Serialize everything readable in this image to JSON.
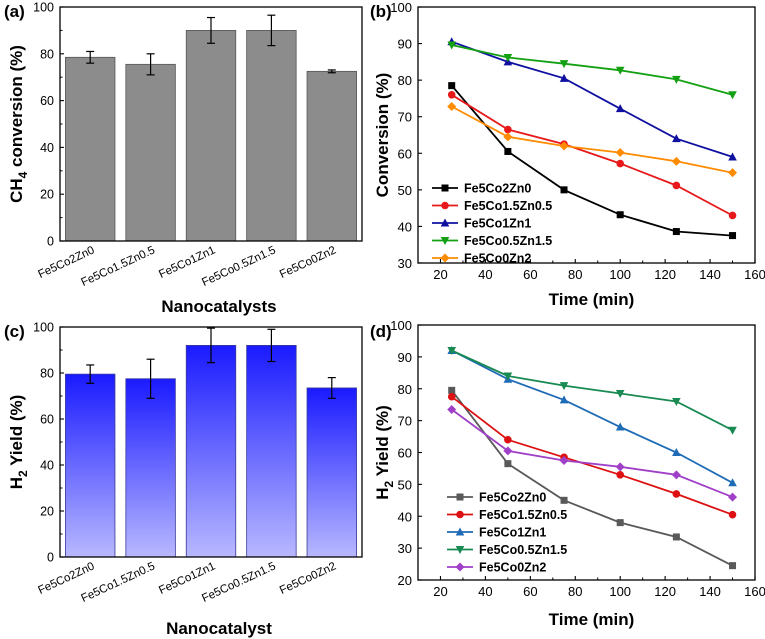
{
  "chart_data": [
    {
      "id": "a",
      "panel_label": "(a)",
      "type": "bar",
      "categories": [
        "Fe5Co2Zn0",
        "Fe5Co1.5Zn0.5",
        "Fe5Co1Zn1",
        "Fe5Co0.5Zn1.5",
        "Fe5Co0Zn2"
      ],
      "values": [
        78.5,
        75.5,
        90,
        90,
        72.5
      ],
      "errors": [
        2.5,
        4.5,
        5.5,
        6.5,
        0.6
      ],
      "ylabel_main": "CH",
      "ylabel_sub": "4",
      "ylabel_rest": " conversion (%)",
      "xlabel": "Nanocatalysts",
      "ylim": [
        0,
        100
      ],
      "yticks": [
        "0",
        "20",
        "40",
        "60",
        "80",
        "100"
      ],
      "bar_color": "#8c8c8c"
    },
    {
      "id": "b",
      "panel_label": "(b)",
      "type": "line",
      "x": [
        25,
        50,
        75,
        100,
        125,
        150
      ],
      "xlim": [
        10,
        160
      ],
      "ylim": [
        30,
        100
      ],
      "xticks": [
        "20",
        "40",
        "60",
        "80",
        "100",
        "120",
        "140",
        "160"
      ],
      "yticks": [
        "30",
        "40",
        "50",
        "60",
        "70",
        "80",
        "90",
        "100"
      ],
      "xlabel": "Time (min)",
      "ylabel": "Conversion (%)",
      "series": [
        {
          "name": "Fe5Co2Zn0",
          "color": "#000000",
          "marker": "square",
          "values": [
            78.5,
            60.5,
            50,
            43.2,
            38.6,
            37.5
          ]
        },
        {
          "name": "Fe5Co1.5Zn0.5",
          "color": "#e8191a",
          "marker": "circle",
          "values": [
            76,
            66.5,
            62.5,
            57.2,
            51.2,
            43
          ]
        },
        {
          "name": "Fe5Co1Zn1",
          "color": "#1010a0",
          "marker": "triangle-up",
          "values": [
            90.5,
            85,
            80.5,
            72.2,
            64,
            59
          ]
        },
        {
          "name": "Fe5Co0.5Zn1.5",
          "color": "#13a013",
          "marker": "triangle-down",
          "values": [
            89.6,
            86.2,
            84.5,
            82.7,
            80.2,
            76
          ]
        },
        {
          "name": "Fe5Co0Zn2",
          "color": "#ff8c00",
          "marker": "diamond",
          "values": [
            72.8,
            64.5,
            62,
            60.2,
            57.8,
            54.7
          ]
        }
      ]
    },
    {
      "id": "c",
      "panel_label": "(c)",
      "type": "bar",
      "categories": [
        "Fe5Co2Zn0",
        "Fe5Co1.5Zn0.5",
        "Fe5Co1Zn1",
        "Fe5Co0.5Zn1.5",
        "Fe5Co0Zn2"
      ],
      "values": [
        79.5,
        77.5,
        92,
        92,
        73.5
      ],
      "errors": [
        4,
        8.5,
        7.5,
        7,
        4.5
      ],
      "ylabel_main": "H",
      "ylabel_sub": "2",
      "ylabel_rest": " Yield (%)",
      "xlabel": "Nanocatalyst",
      "ylim": [
        0,
        100
      ],
      "yticks": [
        "0",
        "20",
        "40",
        "60",
        "80",
        "100"
      ],
      "bar_color": "#1a1aff"
    },
    {
      "id": "d",
      "panel_label": "(d)",
      "type": "line",
      "x": [
        25,
        50,
        75,
        100,
        125,
        150
      ],
      "xlim": [
        10,
        160
      ],
      "ylim": [
        20,
        100
      ],
      "xticks": [
        "20",
        "40",
        "60",
        "80",
        "100",
        "120",
        "140",
        "160"
      ],
      "yticks": [
        "20",
        "30",
        "40",
        "50",
        "60",
        "70",
        "80",
        "90",
        "100"
      ],
      "xlabel": "Time (min)",
      "ylabel_main": "H",
      "ylabel_sub": "2",
      "ylabel_rest": " Yield (%)",
      "series": [
        {
          "name": "Fe5Co2Zn0",
          "color": "#595959",
          "marker": "square",
          "values": [
            79.5,
            56.5,
            45,
            38,
            33.5,
            24.5
          ]
        },
        {
          "name": "Fe5Co1.5Zn0.5",
          "color": "#dd1111",
          "marker": "circle",
          "values": [
            77.5,
            64,
            58.5,
            53,
            47,
            40.5
          ]
        },
        {
          "name": "Fe5Co1Zn1",
          "color": "#1f6bb5",
          "marker": "triangle-up",
          "values": [
            92,
            83,
            76.5,
            68,
            60,
            50.5
          ]
        },
        {
          "name": "Fe5Co0.5Zn1.5",
          "color": "#188a52",
          "marker": "triangle-down",
          "values": [
            92,
            84,
            81,
            78.5,
            76,
            67
          ]
        },
        {
          "name": "Fe5Co0Zn2",
          "color": "#a040c8",
          "marker": "diamond",
          "values": [
            73.5,
            60.5,
            57.5,
            55.5,
            53,
            46
          ]
        }
      ]
    }
  ]
}
